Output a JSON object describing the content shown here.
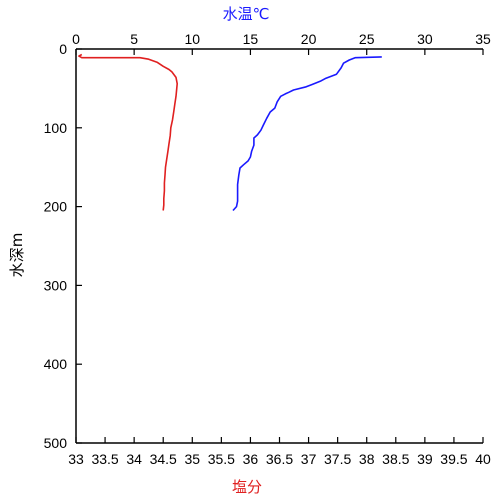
{
  "chart_data": {
    "type": "line",
    "title": "",
    "x_top_axis": {
      "label": "水温℃",
      "label_color": "#1a1aff",
      "range": [
        0,
        35
      ],
      "ticks": [
        "0",
        "5",
        "10",
        "15",
        "20",
        "25",
        "30",
        "35"
      ]
    },
    "x_bottom_axis": {
      "label": "塩分",
      "label_color": "#e02020",
      "range": [
        33,
        40
      ],
      "ticks": [
        "33",
        "33.5",
        "34",
        "34.5",
        "35",
        "35.5",
        "36",
        "36.5",
        "37",
        "37.5",
        "38",
        "38.5",
        "39",
        "39.5",
        "40"
      ]
    },
    "y_axis": {
      "label": "水深m",
      "range": [
        0,
        500
      ],
      "inverted": true,
      "ticks": [
        "0",
        "100",
        "200",
        "300",
        "400",
        "500"
      ]
    },
    "grid": false,
    "series": [
      {
        "axis": "top",
        "color": "#1a1aff",
        "points": [
          [
            26.3,
            10
          ],
          [
            24.0,
            11
          ],
          [
            23.5,
            14
          ],
          [
            23.0,
            18
          ],
          [
            22.8,
            24
          ],
          [
            22.4,
            32
          ],
          [
            21.5,
            37
          ],
          [
            21.0,
            41
          ],
          [
            20.3,
            45
          ],
          [
            19.8,
            48
          ],
          [
            18.7,
            52
          ],
          [
            18.3,
            55
          ],
          [
            18.0,
            57
          ],
          [
            17.6,
            60
          ],
          [
            17.3,
            67
          ],
          [
            17.1,
            75
          ],
          [
            16.7,
            80
          ],
          [
            16.4,
            88
          ],
          [
            16.1,
            97
          ],
          [
            15.9,
            103
          ],
          [
            15.6,
            109
          ],
          [
            15.3,
            113
          ],
          [
            15.3,
            122
          ],
          [
            15.1,
            130
          ],
          [
            15.0,
            137
          ],
          [
            14.8,
            142
          ],
          [
            14.4,
            147
          ],
          [
            14.1,
            151
          ],
          [
            14.0,
            160
          ],
          [
            13.9,
            172
          ],
          [
            13.9,
            182
          ],
          [
            13.9,
            193
          ],
          [
            13.8,
            200
          ],
          [
            13.5,
            205
          ]
        ]
      },
      {
        "axis": "bottom",
        "color": "#e02020",
        "points": [
          [
            33.1,
            7
          ],
          [
            33.05,
            9
          ],
          [
            33.1,
            11
          ],
          [
            34.1,
            11
          ],
          [
            34.25,
            13
          ],
          [
            34.4,
            17
          ],
          [
            34.5,
            22
          ],
          [
            34.6,
            26
          ],
          [
            34.65,
            29
          ],
          [
            34.72,
            36
          ],
          [
            34.74,
            44
          ],
          [
            34.73,
            52
          ],
          [
            34.72,
            60
          ],
          [
            34.7,
            70
          ],
          [
            34.68,
            80
          ],
          [
            34.66,
            90
          ],
          [
            34.63,
            100
          ],
          [
            34.62,
            110
          ],
          [
            34.6,
            120
          ],
          [
            34.58,
            130
          ],
          [
            34.56,
            140
          ],
          [
            34.54,
            150
          ],
          [
            34.53,
            160
          ],
          [
            34.52,
            170
          ],
          [
            34.52,
            180
          ],
          [
            34.51,
            190
          ],
          [
            34.51,
            198
          ],
          [
            34.5,
            205
          ]
        ]
      }
    ]
  }
}
